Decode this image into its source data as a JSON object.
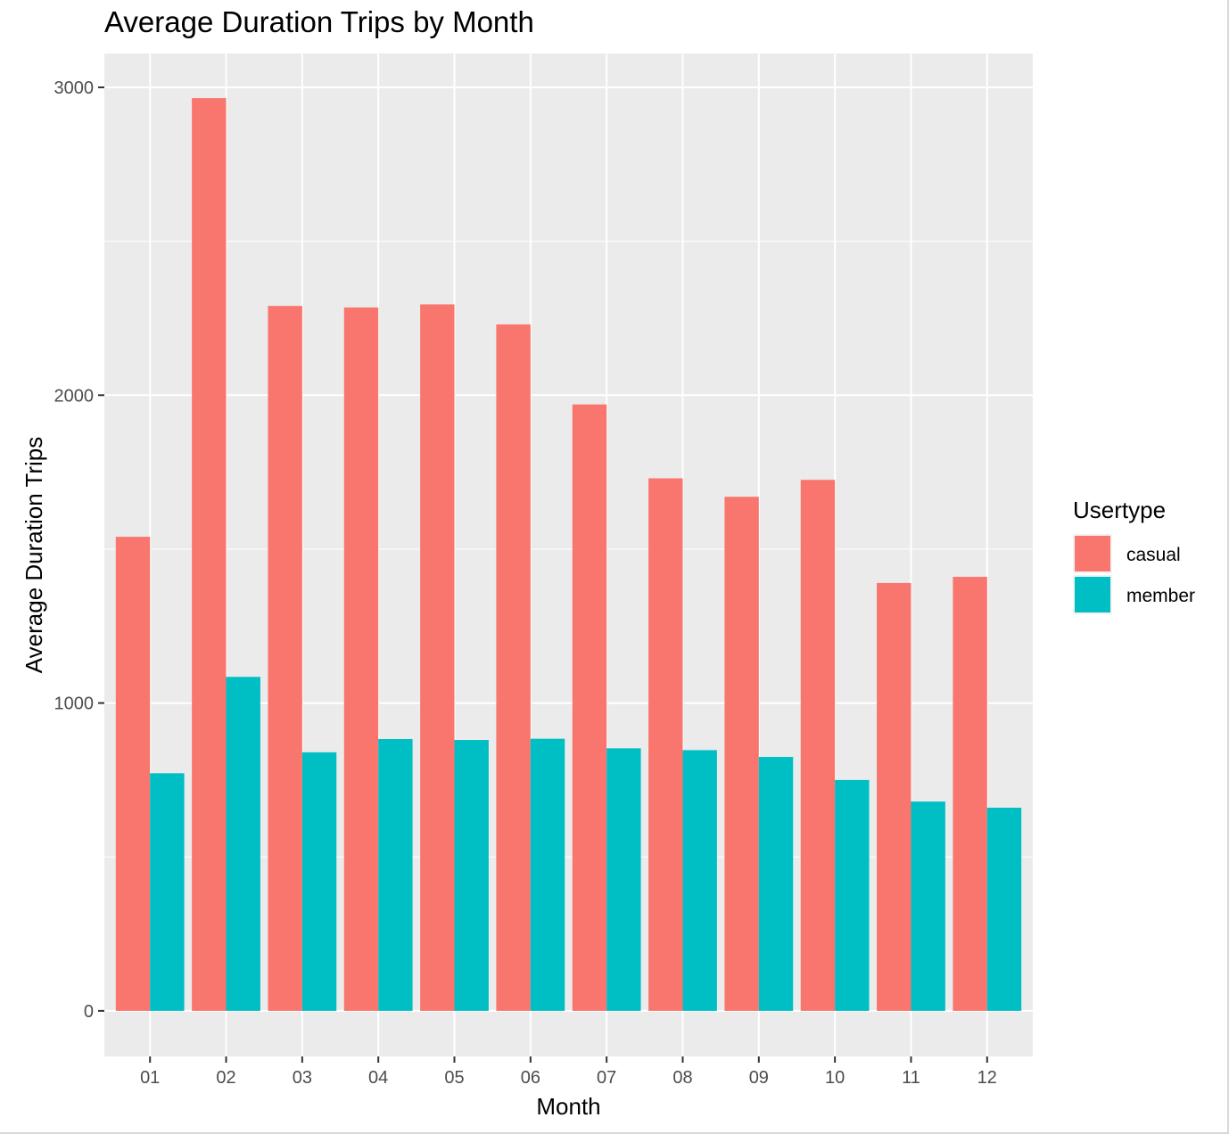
{
  "chart_data": {
    "type": "bar",
    "title": "Average Duration Trips by Month",
    "xlabel": "Month",
    "ylabel": "Average Duration Trips",
    "categories": [
      "01",
      "02",
      "03",
      "04",
      "05",
      "06",
      "07",
      "08",
      "09",
      "10",
      "11",
      "12"
    ],
    "series": [
      {
        "name": "casual",
        "color": "#F8766D",
        "values": [
          1540,
          2965,
          2290,
          2285,
          2295,
          2230,
          1970,
          1730,
          1670,
          1725,
          1390,
          1410
        ]
      },
      {
        "name": "member",
        "color": "#00BFC4",
        "values": [
          772,
          1085,
          840,
          883,
          880,
          884,
          853,
          847,
          825,
          750,
          680,
          660
        ]
      }
    ],
    "ylim": [
      -148,
      3110
    ],
    "yticks": [
      0,
      1000,
      2000,
      3000
    ],
    "ytick_labels": [
      "0",
      "1000",
      "2000",
      "3000"
    ],
    "grid": true,
    "legend": {
      "title": "Usertype",
      "position": "right",
      "entries": [
        "casual",
        "member"
      ]
    },
    "colors": {
      "panel_background": "#EBEBEB",
      "grid_line": "#FFFFFF"
    }
  }
}
